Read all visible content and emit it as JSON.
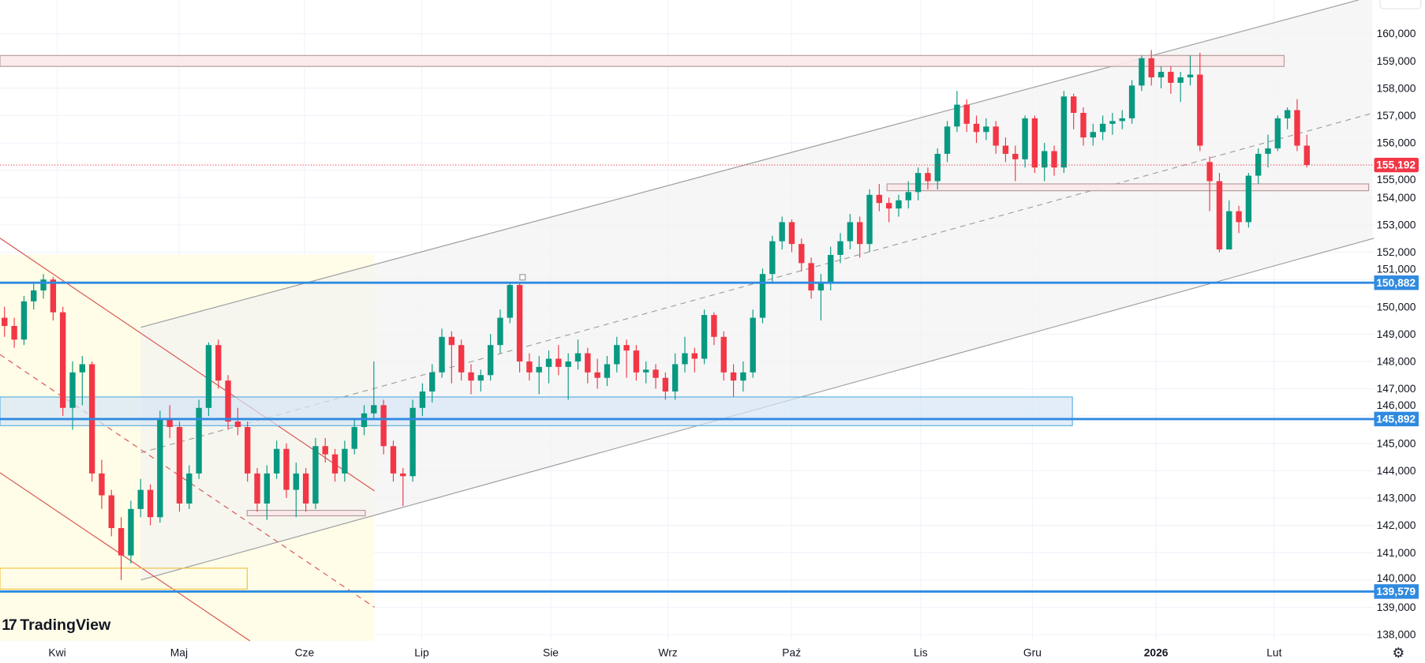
{
  "app": {
    "brand": "TradingView",
    "settings_icon": "gear-icon"
  },
  "colors": {
    "up": "#089981",
    "down": "#f23645",
    "level": "#2f8ae0",
    "channel": "#9e9e9e",
    "desc_channel": "#d9534f",
    "grid": "#f0f3fa"
  },
  "chart_data": {
    "type": "candlestick",
    "y_ticks": [
      "160,000",
      "159,000",
      "158,000",
      "157,000",
      "156,000",
      "155,000",
      "154,000",
      "153,000",
      "152,000",
      "151,000",
      "150,000",
      "149,000",
      "148,000",
      "147,000",
      "146,000",
      "145,000",
      "144,000",
      "143,000",
      "142,000",
      "141,000",
      "140,000",
      "139,000",
      "138,000"
    ],
    "y_tick_values": [
      160,
      159,
      158,
      157,
      156,
      155,
      154,
      153,
      152,
      151,
      150,
      149,
      148,
      147,
      146,
      145,
      144,
      143,
      142,
      141,
      140,
      139,
      138
    ],
    "ylim": [
      137.7,
      161.2
    ],
    "x_ticks": [
      "Kwi",
      "Maj",
      "Cze",
      "Lip",
      "Sie",
      "Wrz",
      "Paź",
      "Lis",
      "Gru",
      "2026",
      "Lut"
    ],
    "last_price": {
      "value": 155.192,
      "label": "155,192",
      "color": "#f23645"
    },
    "levels": [
      {
        "value": 150.882,
        "label": "150,882"
      },
      {
        "value": 145.892,
        "label": "145,892"
      },
      {
        "value": 139.579,
        "label": "139,579"
      }
    ],
    "zones": [
      {
        "kind": "support",
        "top": 146.7,
        "bottom": 145.65
      },
      {
        "kind": "resistance",
        "top": 159.2,
        "bottom": 158.8
      },
      {
        "kind": "resistance",
        "top": 154.5,
        "bottom": 154.25
      },
      {
        "kind": "support",
        "top": 142.55,
        "bottom": 142.35
      }
    ],
    "ohlc": [
      [
        149.6,
        150.0,
        148.9,
        149.3
      ],
      [
        149.3,
        149.6,
        148.5,
        148.8
      ],
      [
        148.8,
        150.4,
        148.6,
        150.2
      ],
      [
        150.2,
        150.9,
        149.9,
        150.6
      ],
      [
        150.6,
        151.2,
        150.3,
        151.0
      ],
      [
        151.0,
        151.1,
        149.5,
        149.8
      ],
      [
        149.8,
        150.0,
        146.0,
        146.3
      ],
      [
        146.3,
        148.0,
        145.5,
        147.6
      ],
      [
        147.6,
        148.2,
        146.4,
        147.9
      ],
      [
        147.9,
        148.0,
        143.6,
        143.9
      ],
      [
        143.9,
        144.4,
        142.6,
        143.1
      ],
      [
        143.1,
        143.3,
        141.6,
        141.9
      ],
      [
        141.9,
        142.3,
        140.0,
        140.9
      ],
      [
        140.9,
        142.9,
        140.6,
        142.6
      ],
      [
        142.6,
        143.7,
        142.3,
        143.3
      ],
      [
        143.3,
        143.5,
        142.0,
        142.3
      ],
      [
        142.3,
        146.2,
        142.1,
        145.9
      ],
      [
        145.9,
        146.4,
        145.2,
        145.6
      ],
      [
        145.6,
        145.8,
        142.5,
        142.8
      ],
      [
        142.8,
        144.2,
        142.6,
        143.9
      ],
      [
        143.9,
        146.6,
        143.7,
        146.3
      ],
      [
        146.3,
        148.7,
        146.0,
        148.6
      ],
      [
        148.6,
        148.8,
        147.0,
        147.3
      ],
      [
        147.3,
        147.5,
        145.5,
        145.8
      ],
      [
        145.8,
        146.3,
        145.3,
        145.6
      ],
      [
        145.6,
        145.8,
        143.6,
        143.9
      ],
      [
        143.9,
        144.1,
        142.5,
        142.8
      ],
      [
        142.8,
        144.2,
        142.2,
        143.9
      ],
      [
        143.9,
        145.1,
        143.7,
        144.8
      ],
      [
        144.8,
        145.0,
        143.0,
        143.3
      ],
      [
        143.3,
        144.3,
        142.3,
        143.9
      ],
      [
        143.9,
        144.1,
        142.5,
        142.8
      ],
      [
        142.8,
        145.2,
        142.6,
        144.9
      ],
      [
        144.9,
        145.2,
        144.3,
        144.6
      ],
      [
        144.6,
        144.8,
        143.6,
        143.9
      ],
      [
        143.9,
        145.1,
        143.6,
        144.8
      ],
      [
        144.8,
        145.9,
        144.6,
        145.6
      ],
      [
        145.6,
        146.4,
        145.3,
        146.1
      ],
      [
        146.1,
        148.0,
        145.9,
        146.4
      ],
      [
        146.4,
        146.6,
        144.6,
        144.9
      ],
      [
        144.9,
        145.1,
        143.6,
        143.9
      ],
      [
        143.9,
        144.1,
        142.7,
        143.8
      ],
      [
        143.8,
        146.6,
        143.6,
        146.3
      ],
      [
        146.3,
        147.2,
        146.0,
        146.9
      ],
      [
        146.9,
        147.9,
        146.5,
        147.6
      ],
      [
        147.6,
        149.2,
        147.4,
        148.9
      ],
      [
        148.9,
        149.1,
        147.2,
        148.6
      ],
      [
        148.6,
        148.8,
        147.3,
        147.6
      ],
      [
        147.6,
        147.9,
        146.8,
        147.3
      ],
      [
        147.3,
        147.7,
        146.9,
        147.5
      ],
      [
        147.5,
        149.0,
        147.3,
        148.6
      ],
      [
        148.6,
        149.9,
        148.3,
        149.6
      ],
      [
        149.6,
        150.9,
        149.4,
        150.8
      ],
      [
        150.8,
        150.9,
        147.6,
        148.0
      ],
      [
        148.0,
        148.3,
        147.3,
        147.6
      ],
      [
        147.6,
        148.2,
        146.8,
        147.8
      ],
      [
        147.8,
        148.4,
        147.2,
        148.1
      ],
      [
        148.1,
        148.6,
        147.5,
        147.8
      ],
      [
        147.8,
        148.3,
        146.6,
        148.0
      ],
      [
        148.0,
        148.8,
        147.7,
        148.3
      ],
      [
        148.3,
        148.5,
        147.2,
        147.6
      ],
      [
        147.6,
        148.1,
        147.0,
        147.4
      ],
      [
        147.4,
        148.2,
        147.1,
        147.9
      ],
      [
        147.9,
        148.9,
        147.6,
        148.6
      ],
      [
        148.6,
        148.8,
        147.4,
        148.4
      ],
      [
        148.4,
        148.6,
        147.3,
        147.6
      ],
      [
        147.6,
        148.0,
        147.2,
        147.7
      ],
      [
        147.7,
        147.9,
        147.0,
        147.4
      ],
      [
        147.4,
        147.6,
        146.6,
        146.9
      ],
      [
        146.9,
        148.3,
        146.6,
        147.9
      ],
      [
        147.9,
        148.9,
        147.6,
        148.3
      ],
      [
        148.3,
        148.5,
        147.6,
        148.1
      ],
      [
        148.1,
        149.9,
        147.9,
        149.7
      ],
      [
        149.7,
        149.8,
        148.6,
        148.9
      ],
      [
        148.9,
        149.1,
        147.3,
        147.6
      ],
      [
        147.6,
        147.9,
        146.7,
        147.3
      ],
      [
        147.3,
        148.0,
        146.9,
        147.6
      ],
      [
        147.6,
        149.9,
        147.4,
        149.6
      ],
      [
        149.6,
        151.4,
        149.4,
        151.2
      ],
      [
        151.2,
        152.6,
        150.9,
        152.4
      ],
      [
        152.4,
        153.3,
        152.1,
        153.1
      ],
      [
        153.1,
        153.2,
        152.0,
        152.3
      ],
      [
        152.3,
        152.5,
        151.3,
        151.6
      ],
      [
        151.6,
        151.8,
        150.3,
        150.6
      ],
      [
        150.6,
        151.2,
        149.5,
        150.9
      ],
      [
        150.9,
        152.2,
        150.6,
        151.9
      ],
      [
        151.9,
        152.7,
        151.6,
        152.4
      ],
      [
        152.4,
        153.4,
        152.1,
        153.1
      ],
      [
        153.1,
        153.3,
        151.8,
        152.3
      ],
      [
        152.3,
        154.3,
        152.0,
        154.1
      ],
      [
        154.1,
        154.5,
        153.5,
        153.8
      ],
      [
        153.8,
        154.0,
        153.1,
        153.6
      ],
      [
        153.6,
        154.1,
        153.3,
        153.9
      ],
      [
        153.9,
        154.6,
        153.6,
        154.2
      ],
      [
        154.2,
        155.1,
        153.9,
        154.9
      ],
      [
        154.9,
        155.1,
        154.3,
        154.6
      ],
      [
        154.6,
        155.8,
        154.3,
        155.6
      ],
      [
        155.6,
        156.8,
        155.3,
        156.6
      ],
      [
        156.6,
        157.9,
        156.4,
        157.4
      ],
      [
        157.4,
        157.6,
        156.4,
        156.7
      ],
      [
        156.7,
        157.0,
        156.0,
        156.4
      ],
      [
        156.4,
        156.9,
        156.1,
        156.6
      ],
      [
        156.6,
        156.8,
        155.6,
        155.9
      ],
      [
        155.9,
        156.2,
        155.3,
        155.6
      ],
      [
        155.6,
        155.9,
        154.6,
        155.4
      ],
      [
        155.4,
        157.0,
        155.1,
        156.9
      ],
      [
        156.9,
        157.0,
        154.9,
        155.1
      ],
      [
        155.1,
        156.0,
        154.6,
        155.7
      ],
      [
        155.7,
        155.9,
        154.8,
        155.1
      ],
      [
        155.1,
        157.9,
        154.9,
        157.7
      ],
      [
        157.7,
        157.8,
        156.5,
        157.1
      ],
      [
        157.1,
        157.3,
        155.9,
        156.2
      ],
      [
        156.2,
        156.7,
        155.9,
        156.4
      ],
      [
        156.4,
        157.0,
        156.1,
        156.7
      ],
      [
        156.7,
        157.1,
        156.3,
        156.8
      ],
      [
        156.8,
        157.2,
        156.5,
        156.9
      ],
      [
        156.9,
        158.3,
        156.7,
        158.1
      ],
      [
        158.1,
        159.2,
        157.9,
        159.1
      ],
      [
        159.1,
        159.4,
        158.1,
        158.4
      ],
      [
        158.4,
        158.8,
        158.0,
        158.6
      ],
      [
        158.6,
        158.8,
        157.8,
        158.2
      ],
      [
        158.2,
        158.6,
        157.5,
        158.4
      ],
      [
        158.4,
        159.2,
        158.1,
        158.5
      ],
      [
        158.5,
        159.3,
        155.7,
        155.9
      ],
      [
        155.3,
        155.5,
        153.5,
        154.6
      ],
      [
        154.6,
        154.9,
        152.0,
        152.1
      ],
      [
        152.1,
        153.9,
        152.1,
        153.5
      ],
      [
        153.5,
        153.7,
        152.7,
        153.1
      ],
      [
        153.1,
        154.9,
        152.9,
        154.8
      ],
      [
        154.8,
        155.8,
        154.5,
        155.6
      ],
      [
        155.6,
        156.3,
        155.1,
        155.8
      ],
      [
        155.8,
        157.0,
        155.7,
        156.9
      ],
      [
        156.9,
        157.3,
        156.5,
        157.2
      ],
      [
        157.2,
        157.6,
        155.7,
        155.9
      ],
      [
        155.9,
        156.3,
        155.1,
        155.192
      ]
    ],
    "grid": true
  }
}
